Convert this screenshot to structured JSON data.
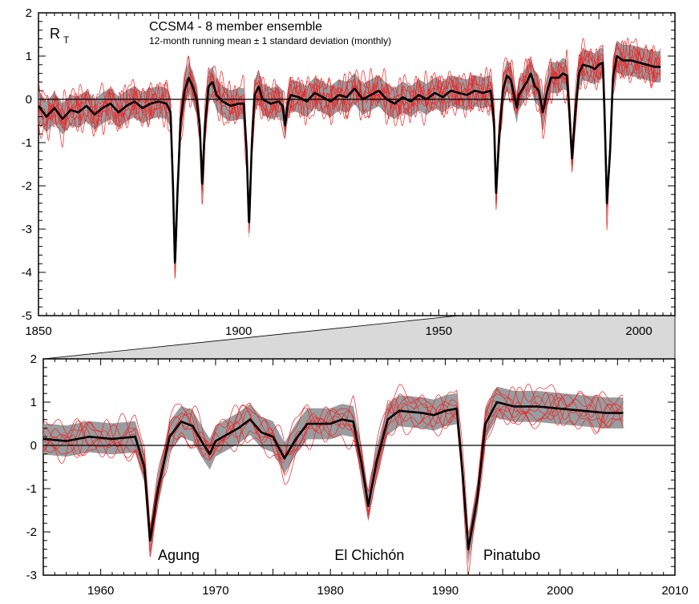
{
  "chart_data": [
    {
      "type": "line",
      "panel": "top",
      "title": "CCSM4 - 8 member ensemble",
      "subtitle": "12-month running mean ± 1 standard deviation (monthly)",
      "panel_label_main": "R",
      "panel_label_sub": "T",
      "xlim": [
        1850,
        2009
      ],
      "ylim": [
        -5,
        2
      ],
      "x_ticks": [
        1850,
        1900,
        1950,
        2000
      ],
      "y_ticks": [
        2,
        1,
        0,
        -1,
        -2,
        -3,
        -4,
        -5
      ],
      "band_sd": 0.36,
      "ensemble_mean": {
        "name": "",
        "points": [
          [
            1850,
            -0.15
          ],
          [
            1852,
            -0.4
          ],
          [
            1854,
            -0.2
          ],
          [
            1856,
            -0.45
          ],
          [
            1858,
            -0.25
          ],
          [
            1860,
            -0.3
          ],
          [
            1862,
            -0.15
          ],
          [
            1864,
            -0.35
          ],
          [
            1866,
            -0.2
          ],
          [
            1868,
            -0.1
          ],
          [
            1870,
            -0.3
          ],
          [
            1872,
            -0.15
          ],
          [
            1874,
            -0.05
          ],
          [
            1876,
            -0.2
          ],
          [
            1878,
            -0.1
          ],
          [
            1880,
            -0.05
          ],
          [
            1882,
            -0.1
          ],
          [
            1883,
            -0.3
          ],
          [
            1883.6,
            -2.0
          ],
          [
            1884.1,
            -3.85
          ],
          [
            1884.7,
            -2.2
          ],
          [
            1885.5,
            -0.5
          ],
          [
            1886.5,
            0.2
          ],
          [
            1887.5,
            0.5
          ],
          [
            1888.5,
            0.3
          ],
          [
            1889.5,
            0.0
          ],
          [
            1890.3,
            -0.6
          ],
          [
            1890.9,
            -2.0
          ],
          [
            1891.6,
            -0.6
          ],
          [
            1892.5,
            0.3
          ],
          [
            1893.5,
            0.4
          ],
          [
            1894.5,
            0.1
          ],
          [
            1896,
            -0.05
          ],
          [
            1898,
            -0.15
          ],
          [
            1900,
            -0.1
          ],
          [
            1901.3,
            -0.1
          ],
          [
            1902,
            -1.2
          ],
          [
            1902.6,
            -2.95
          ],
          [
            1903.3,
            -1.0
          ],
          [
            1904,
            0.1
          ],
          [
            1905,
            0.3
          ],
          [
            1906,
            0.0
          ],
          [
            1908,
            -0.1
          ],
          [
            1910,
            -0.05
          ],
          [
            1911,
            -0.15
          ],
          [
            1911.6,
            -0.6
          ],
          [
            1912.3,
            -0.1
          ],
          [
            1913,
            0.1
          ],
          [
            1915,
            0.05
          ],
          [
            1917,
            -0.05
          ],
          [
            1919,
            0.15
          ],
          [
            1921,
            0.05
          ],
          [
            1923,
            -0.05
          ],
          [
            1925,
            0.1
          ],
          [
            1927,
            0.05
          ],
          [
            1929,
            0.25
          ],
          [
            1931,
            0.0
          ],
          [
            1933,
            0.1
          ],
          [
            1935,
            0.2
          ],
          [
            1937,
            0.0
          ],
          [
            1939,
            -0.1
          ],
          [
            1941,
            0.05
          ],
          [
            1943,
            -0.05
          ],
          [
            1945,
            0.1
          ],
          [
            1947,
            0.0
          ],
          [
            1949,
            0.15
          ],
          [
            1951,
            0.05
          ],
          [
            1953,
            0.2
          ],
          [
            1955,
            0.15
          ],
          [
            1957,
            0.1
          ],
          [
            1959,
            0.2
          ],
          [
            1961,
            0.15
          ],
          [
            1963,
            0.2
          ],
          [
            1963.8,
            -0.5
          ],
          [
            1964.3,
            -2.2
          ],
          [
            1965,
            -1.0
          ],
          [
            1966,
            0.2
          ],
          [
            1967,
            0.55
          ],
          [
            1968,
            0.45
          ],
          [
            1969,
            0.0
          ],
          [
            1969.5,
            -0.2
          ],
          [
            1970,
            0.1
          ],
          [
            1972,
            0.4
          ],
          [
            1973,
            0.6
          ],
          [
            1974,
            0.3
          ],
          [
            1975,
            0.2
          ],
          [
            1976,
            -0.3
          ],
          [
            1977,
            0.15
          ],
          [
            1978,
            0.5
          ],
          [
            1980,
            0.5
          ],
          [
            1981,
            0.6
          ],
          [
            1982,
            0.55
          ],
          [
            1982.7,
            -0.4
          ],
          [
            1983.3,
            -1.4
          ],
          [
            1984,
            -0.4
          ],
          [
            1985,
            0.6
          ],
          [
            1986,
            0.8
          ],
          [
            1988,
            0.75
          ],
          [
            1989,
            0.7
          ],
          [
            1990,
            0.8
          ],
          [
            1991,
            0.85
          ],
          [
            1991.5,
            -0.6
          ],
          [
            1992,
            -2.4
          ],
          [
            1992.8,
            -1.2
          ],
          [
            1993.5,
            0.5
          ],
          [
            1994.5,
            1.0
          ],
          [
            1996,
            0.9
          ],
          [
            1998,
            0.9
          ],
          [
            2000,
            0.85
          ],
          [
            2002,
            0.8
          ],
          [
            2004,
            0.75
          ],
          [
            2005.5,
            0.75
          ]
        ]
      },
      "members": [
        {
          "name": "",
          "offsets": [
            0.25,
            -0.2,
            0.3,
            -0.25
          ]
        },
        {
          "name": "",
          "offsets": [
            -0.25,
            0.2,
            -0.3,
            0.15
          ]
        },
        {
          "name": "",
          "offsets": [
            0.15,
            0.3,
            -0.2,
            -0.3
          ]
        },
        {
          "name": "",
          "offsets": [
            -0.3,
            -0.15,
            0.25,
            0.3
          ]
        },
        {
          "name": "",
          "offsets": [
            0.3,
            0.1,
            0.1,
            -0.2
          ]
        },
        {
          "name": "",
          "offsets": [
            -0.15,
            -0.3,
            -0.1,
            0.25
          ]
        },
        {
          "name": "",
          "offsets": [
            0.1,
            0.25,
            0.3,
            0.05
          ]
        },
        {
          "name": "",
          "offsets": [
            -0.2,
            0.0,
            -0.25,
            -0.15
          ]
        }
      ],
      "colors": {
        "band": "#999da0",
        "members": "#ee2222",
        "mean": "#000000"
      }
    },
    {
      "type": "line",
      "panel": "bottom",
      "title": "",
      "xlim": [
        1955,
        2010
      ],
      "ylim": [
        -3,
        2
      ],
      "x_ticks": [
        1960,
        1970,
        1980,
        1990,
        2000,
        2010
      ],
      "y_ticks": [
        2,
        1,
        0,
        -1,
        -2,
        -3
      ],
      "annotations": [
        {
          "text": "Agung",
          "x": 1966.8,
          "y": -2.65
        },
        {
          "text": "El Chichón",
          "x": 1983.4,
          "y": -2.65
        },
        {
          "text": "Pinatubo",
          "x": 1995.8,
          "y": -2.65
        }
      ]
    }
  ]
}
